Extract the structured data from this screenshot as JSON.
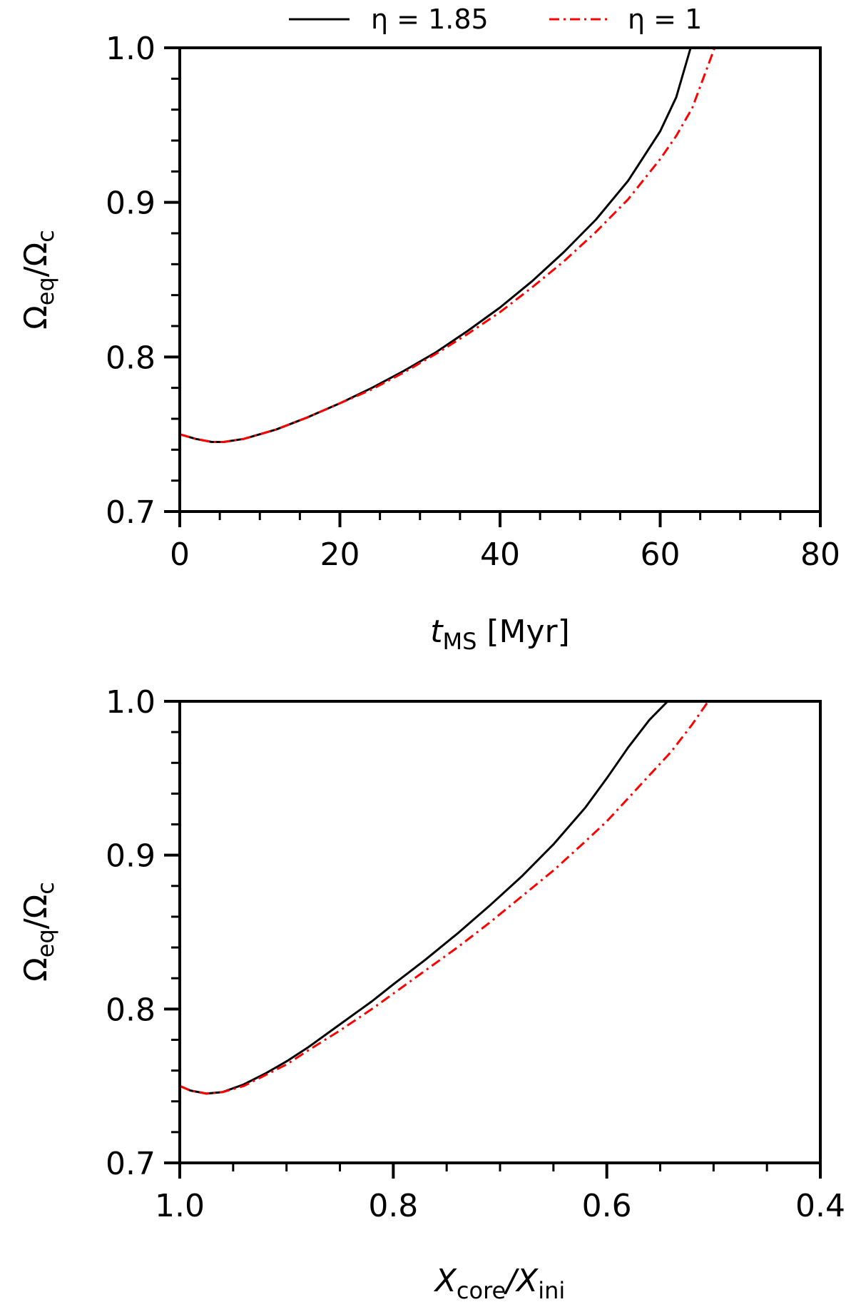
{
  "legend": {
    "placement": "top-center",
    "entries": [
      {
        "name": "η = 1.85",
        "color": "#000000",
        "style": "solid"
      },
      {
        "name": "η = 1",
        "color": "#ff0000",
        "style": "dashdot"
      }
    ]
  },
  "chart_data": [
    {
      "type": "line",
      "xlabel": "t_MS [Myr]",
      "xlabel_main": "t",
      "xlabel_sub": "MS",
      "xlabel_unit": " [Myr]",
      "ylabel": "Ω_eq/Ω_c",
      "xlim": [
        0,
        80
      ],
      "ylim": [
        0.7,
        1.0
      ],
      "x_ticks": [
        0,
        20,
        40,
        60,
        80
      ],
      "x_tick_labels": [
        "0",
        "20",
        "40",
        "60",
        "80"
      ],
      "y_ticks": [
        0.7,
        0.8,
        0.9,
        1.0
      ],
      "y_tick_labels": [
        "0.7",
        "0.8",
        "0.9",
        "1.0"
      ],
      "grid": false,
      "series": [
        {
          "name": "η = 1.85",
          "color": "#000000",
          "style": "solid",
          "x": [
            0,
            2,
            4,
            5.5,
            8,
            12,
            16,
            20,
            24,
            28,
            32,
            36,
            40,
            44,
            48,
            52,
            56,
            60,
            62,
            63.8
          ],
          "y": [
            0.75,
            0.747,
            0.745,
            0.745,
            0.747,
            0.753,
            0.761,
            0.77,
            0.78,
            0.791,
            0.803,
            0.817,
            0.832,
            0.849,
            0.868,
            0.889,
            0.914,
            0.946,
            0.968,
            1.0
          ]
        },
        {
          "name": "η = 1",
          "color": "#ff0000",
          "style": "dashdot",
          "x": [
            0,
            2,
            4,
            5.5,
            8,
            12,
            16,
            20,
            24,
            28,
            32,
            36,
            40,
            44,
            48,
            52,
            56,
            60,
            62,
            64,
            66.8
          ],
          "y": [
            0.75,
            0.747,
            0.745,
            0.745,
            0.747,
            0.753,
            0.761,
            0.77,
            0.779,
            0.79,
            0.802,
            0.815,
            0.829,
            0.845,
            0.862,
            0.881,
            0.902,
            0.928,
            0.943,
            0.961,
            1.0
          ]
        }
      ]
    },
    {
      "type": "line",
      "xlabel": "X_core/X_ini",
      "xlabel_main1": "X",
      "xlabel_sub1": "core",
      "xlabel_main2": "/X",
      "xlabel_sub2": "ini",
      "ylabel": "Ω_eq/Ω_c",
      "xlim": [
        1.0,
        0.4
      ],
      "ylim": [
        0.7,
        1.0
      ],
      "x_ticks": [
        1.0,
        0.8,
        0.6,
        0.4
      ],
      "x_tick_labels": [
        "1.0",
        "0.8",
        "0.6",
        "0.4"
      ],
      "y_ticks": [
        0.7,
        0.8,
        0.9,
        1.0
      ],
      "y_tick_labels": [
        "0.7",
        "0.8",
        "0.9",
        "1.0"
      ],
      "grid": false,
      "series": [
        {
          "name": "η = 1.85",
          "color": "#000000",
          "style": "solid",
          "x": [
            1.0,
            0.99,
            0.975,
            0.96,
            0.94,
            0.92,
            0.9,
            0.88,
            0.85,
            0.82,
            0.8,
            0.77,
            0.74,
            0.71,
            0.68,
            0.65,
            0.62,
            0.6,
            0.58,
            0.56,
            0.543
          ],
          "y": [
            0.75,
            0.747,
            0.745,
            0.746,
            0.751,
            0.758,
            0.766,
            0.775,
            0.79,
            0.805,
            0.816,
            0.832,
            0.849,
            0.867,
            0.886,
            0.907,
            0.931,
            0.95,
            0.97,
            0.988,
            1.0
          ]
        },
        {
          "name": "η = 1",
          "color": "#ff0000",
          "style": "dashdot",
          "x": [
            1.0,
            0.99,
            0.975,
            0.96,
            0.94,
            0.92,
            0.9,
            0.88,
            0.85,
            0.82,
            0.8,
            0.77,
            0.74,
            0.71,
            0.68,
            0.65,
            0.62,
            0.6,
            0.58,
            0.56,
            0.54,
            0.52,
            0.505
          ],
          "y": [
            0.75,
            0.747,
            0.745,
            0.746,
            0.75,
            0.757,
            0.764,
            0.773,
            0.786,
            0.8,
            0.81,
            0.825,
            0.84,
            0.856,
            0.873,
            0.89,
            0.909,
            0.922,
            0.937,
            0.952,
            0.967,
            0.985,
            1.0
          ]
        }
      ]
    }
  ]
}
